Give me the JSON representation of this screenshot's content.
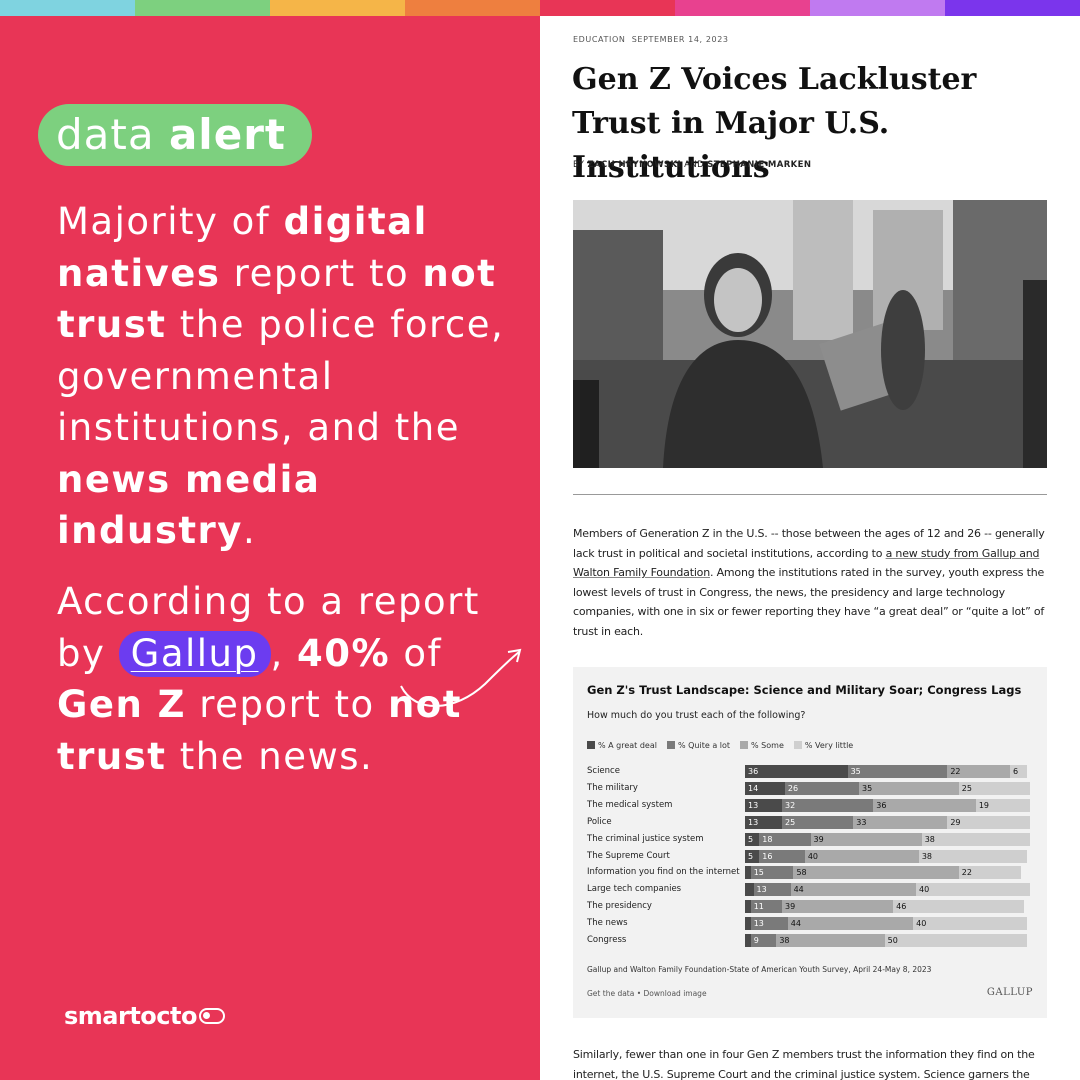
{
  "strip_colors": [
    "#7fd3e0",
    "#7dd07f",
    "#f5b548",
    "#ee7f3f",
    "#e83556",
    "#e8418f",
    "#c07af0",
    "#7b35ec"
  ],
  "left": {
    "pill_text_1": "data",
    "pill_text_2": "alert",
    "p1": [
      "Majority of ",
      "digital natives",
      " report to ",
      "not trust",
      " the police force, governmental institutions, and the ",
      "news media industry",
      "."
    ],
    "p2": [
      "According to a report by ",
      "Gallup",
      ", ",
      "40%",
      " of ",
      "Gen Z",
      " report to ",
      "not trust",
      " the news."
    ],
    "logo": "smartocto"
  },
  "article": {
    "category": "EDUCATION",
    "date": "SEPTEMBER 14, 2023",
    "title": "Gen Z Voices Lackluster Trust in Major U.S. Institutions",
    "byline_prefix": "BY",
    "author1": "ZACH HRYNOWSKI",
    "byline_and": "AND",
    "author2": "STEPHANIE MARKEN",
    "body1_a": "Members of Generation Z in the U.S. -- those between the ages of 12 and 26 -- generally lack trust in political and societal institutions, according to ",
    "body1_link": "a new study from Gallup and Walton Family Foundation",
    "body1_b": ". Among the institutions rated in the survey, youth express the lowest levels of trust in Congress, the news, the presidency and large technology companies, with one in six or fewer reporting they have “a great deal” or “quite a lot” of trust in each.",
    "body2": "Similarly, fewer than one in four Gen Z members trust the information they find on the internet, the U.S. Supreme Court and the criminal justice system. Science garners the"
  },
  "chart_data": {
    "type": "bar",
    "stacked": true,
    "orientation": "horizontal",
    "title": "Gen Z's Trust Landscape: Science and Military Soar; Congress Lags",
    "subtitle": "How much do you trust each of the following?",
    "legend": [
      "% A great deal",
      "% Quite a lot",
      "% Some",
      "% Very little"
    ],
    "series_colors": [
      "#4a4a4a",
      "#7a7a7a",
      "#a9a9a9",
      "#cfcfcf"
    ],
    "categories": [
      "Science",
      "The military",
      "The medical system",
      "Police",
      "The criminal justice system",
      "The Supreme Court",
      "Information you find on the internet",
      "Large tech companies",
      "The presidency",
      "The news",
      "Congress"
    ],
    "series": [
      {
        "name": "% A great deal",
        "values": [
          36,
          14,
          13,
          13,
          5,
          5,
          2,
          3,
          2,
          2,
          2
        ]
      },
      {
        "name": "% Quite a lot",
        "values": [
          35,
          26,
          32,
          25,
          18,
          16,
          15,
          13,
          11,
          13,
          9
        ]
      },
      {
        "name": "% Some",
        "values": [
          22,
          35,
          36,
          33,
          39,
          40,
          58,
          44,
          39,
          44,
          38
        ]
      },
      {
        "name": "% Very little",
        "values": [
          6,
          25,
          19,
          29,
          38,
          38,
          22,
          40,
          46,
          40,
          50
        ]
      }
    ],
    "labels": [
      [
        "36",
        "35",
        "22",
        "6"
      ],
      [
        "14",
        "26",
        "35",
        "25"
      ],
      [
        "13",
        "32",
        "36",
        "19"
      ],
      [
        "13",
        "25",
        "33",
        "29"
      ],
      [
        "5",
        "18",
        "39",
        "38"
      ],
      [
        "5",
        "16",
        "40",
        "38"
      ],
      [
        "",
        "15",
        "58",
        "22"
      ],
      [
        "",
        "13",
        "44",
        "40"
      ],
      [
        "",
        "11",
        "39",
        "46"
      ],
      [
        "",
        "13",
        "44",
        "40"
      ],
      [
        "",
        "9",
        "38",
        "50"
      ]
    ],
    "source": "Gallup and Walton Family Foundation-State of American Youth Survey, April 24-May 8, 2023",
    "links": "Get the data • Download image",
    "brand": "GALLUP"
  }
}
